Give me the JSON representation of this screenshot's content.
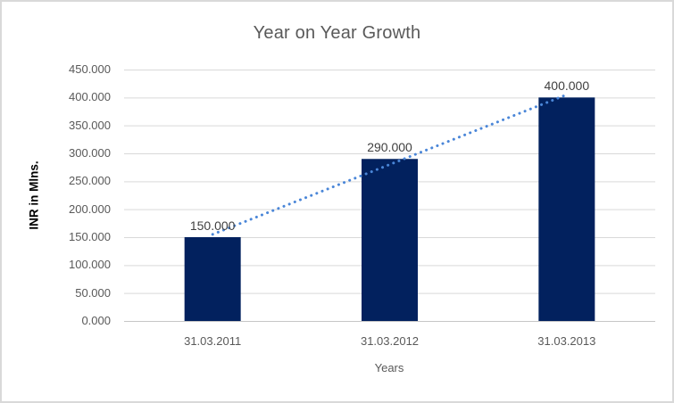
{
  "chart_data": {
    "type": "bar",
    "title": "Year on Year Growth",
    "categories": [
      "31.03.2011",
      "31.03.2012",
      "31.03.2013"
    ],
    "values": [
      150,
      290,
      400
    ],
    "value_labels": [
      "150.000",
      "290.000",
      "400.000"
    ],
    "xlabel": "Years",
    "ylabel": "INR in Mlns.",
    "ylim": [
      0,
      450
    ],
    "ytick_step": 50,
    "ytick_labels": [
      "450.000",
      "400.000",
      "350.000",
      "300.000",
      "250.000",
      "200.000",
      "150.000",
      "100.000",
      "50.000",
      "0.000"
    ],
    "grid": true,
    "legend": "none",
    "trendline": {
      "kind": "linear-least-squares",
      "style": "dotted"
    }
  },
  "colors": {
    "bar": "#02215E",
    "trendline": "#4A86D8",
    "gridline": "#D9D9D9",
    "axis_line": "#C6C6C6",
    "text_muted": "#595959",
    "text_dark": "#404040",
    "ylabel_text": "#000000",
    "frame_border": "#D9D9D9",
    "background": "#FFFFFF"
  }
}
